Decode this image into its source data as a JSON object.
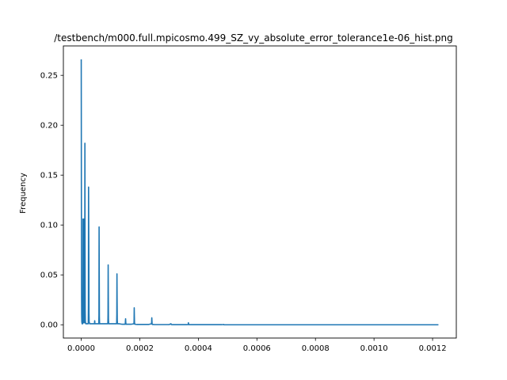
{
  "chart_data": {
    "type": "line",
    "title": "/testbench/m000.full.mpicosmo.499_SZ_vy_absolute_error_tolerance1e-06_hist.png",
    "xlabel": "",
    "ylabel": "Frequency",
    "xlim": [
      -6.1e-05,
      0.001281
    ],
    "ylim": [
      -0.0133,
      0.2795
    ],
    "xticks": [
      0.0,
      0.0002,
      0.0004,
      0.0006,
      0.0008,
      0.001,
      0.0012
    ],
    "xtick_labels": [
      "0.0000",
      "0.0002",
      "0.0004",
      "0.0006",
      "0.0008",
      "0.0010",
      "0.0012"
    ],
    "yticks": [
      0.0,
      0.05,
      0.1,
      0.15,
      0.2,
      0.25
    ],
    "ytick_labels": [
      "0.00",
      "0.05",
      "0.10",
      "0.15",
      "0.20",
      "0.25"
    ],
    "grid": false,
    "color": "#1f77b4",
    "series": [
      {
        "x": [
          0.0,
          5e-07,
          1e-06,
          1.5e-06,
          2e-06,
          2.5e-06,
          3e-06,
          3.5e-06,
          4e-06,
          4.5e-06,
          5e-06,
          5.5e-06,
          6e-06,
          6.5e-06,
          7e-06,
          7.5e-06,
          8e-06,
          8.5e-06,
          9e-06,
          9.5e-06,
          1e-05,
          1.05e-05,
          1.1e-05,
          1.15e-05,
          1.2e-05,
          1.25e-05,
          1.3e-05,
          1.35e-05,
          1.4e-05,
          1.45e-05,
          1.5e-05,
          1.55e-05,
          1.6e-05,
          1.65e-05,
          1.7e-05,
          1.75e-05,
          1.8e-05,
          1.85e-05,
          1.9e-05,
          1.95e-05,
          2e-05,
          2.3e-05,
          2.35e-05,
          2.4e-05,
          2.45e-05,
          2.5e-05,
          2.6e-05,
          2.65e-05,
          2.7e-05,
          2.75e-05,
          2.8e-05,
          2.85e-05,
          2.9e-05,
          2.95e-05,
          3e-05,
          3.05e-05,
          3.1e-05,
          3.15e-05,
          3.2e-05,
          3.5e-05,
          4e-05,
          4.5e-05,
          4.55e-05,
          4.6e-05,
          4.65e-05,
          4.7e-05,
          5e-05,
          5.5e-05,
          6e-05,
          6.05e-05,
          6.1e-05,
          6.15e-05,
          6.2e-05,
          6.25e-05,
          6.3e-05,
          6.6e-05,
          7e-05,
          8e-05,
          9e-05,
          9.05e-05,
          9.1e-05,
          9.15e-05,
          9.2e-05,
          9.25e-05,
          9.3e-05,
          9.35e-05,
          9.4e-05,
          9.45e-05,
          9.5e-05,
          0.0001,
          0.00011,
          0.00012,
          0.0001205,
          0.000121,
          0.0001215,
          0.000122,
          0.0001225,
          0.000123,
          0.0001235,
          0.000124,
          0.000125,
          0.00013,
          0.00014,
          0.00015,
          0.0001505,
          0.000151,
          0.0001515,
          0.000152,
          0.0001525,
          0.000153,
          0.000155,
          0.00016,
          0.00017,
          0.00018,
          0.0001805,
          0.000181,
          0.0001815,
          0.000182,
          0.0001825,
          0.000183,
          0.000185,
          0.00019,
          0.0002,
          0.00021,
          0.00022,
          0.00023,
          0.00024,
          0.0002405,
          0.000241,
          0.0002415,
          0.000242,
          0.0002425,
          0.000243,
          0.000245,
          0.00025,
          0.00027,
          0.0003,
          0.0003065,
          0.000307,
          0.0003075,
          0.00031,
          0.00033,
          0.00036,
          0.0003655,
          0.000366,
          0.0003665,
          0.000367,
          0.000368,
          0.00037,
          0.00042,
          0.00048,
          0.0004865,
          0.000487,
          0.0004875,
          0.00049,
          0.0006,
          0.0008,
          0.001,
          0.00122
        ],
        "y": [
          0.266,
          0.14,
          0.04,
          0.01,
          0.003,
          0.002,
          0.001,
          0.001,
          0.001,
          0.001,
          0.002,
          0.02,
          0.106,
          0.06,
          0.012,
          0.003,
          0.002,
          0.003,
          0.03,
          0.106,
          0.05,
          0.01,
          0.003,
          0.002,
          0.03,
          0.182,
          0.08,
          0.015,
          0.004,
          0.002,
          0.002,
          0.001,
          0.001,
          0.001,
          0.001,
          0.001,
          0.001,
          0.001,
          0.001,
          0.001,
          0.001,
          0.001,
          0.001,
          0.002,
          0.02,
          0.138,
          0.07,
          0.012,
          0.003,
          0.002,
          0.002,
          0.001,
          0.001,
          0.001,
          0.001,
          0.001,
          0.001,
          0.001,
          0.001,
          0.001,
          0.001,
          0.001,
          0.002,
          0.004,
          0.002,
          0.001,
          0.001,
          0.001,
          0.001,
          0.01,
          0.098,
          0.05,
          0.008,
          0.002,
          0.001,
          0.001,
          0.001,
          0.001,
          0.001,
          0.001,
          0.002,
          0.01,
          0.06,
          0.03,
          0.006,
          0.002,
          0.001,
          0.001,
          0.001,
          0.001,
          0.001,
          0.001,
          0.001,
          0.002,
          0.01,
          0.051,
          0.025,
          0.005,
          0.002,
          0.001,
          0.001,
          0.001,
          0.0005,
          0.0005,
          0.001,
          0.004,
          0.006,
          0.003,
          0.001,
          0.0005,
          0.0005,
          0.0005,
          0.0005,
          0.001,
          0.004,
          0.017,
          0.008,
          0.002,
          0.001,
          0.0005,
          0.0005,
          0.0003,
          0.0003,
          0.0003,
          0.0003,
          0.0003,
          0.001,
          0.003,
          0.007,
          0.004,
          0.001,
          0.0005,
          0.0003,
          0.0003,
          0.0002,
          0.0002,
          0.0002,
          0.001,
          0.0005,
          0.0002,
          0.0001,
          0.0001,
          0.0001,
          0.0002,
          0.002,
          0.001,
          0.0003,
          0.0001,
          0.0001,
          0.0001,
          0.0001,
          0.0003,
          0.0001,
          0.0,
          0.0,
          0.0,
          0.0,
          0.0,
          0.0
        ]
      }
    ]
  }
}
